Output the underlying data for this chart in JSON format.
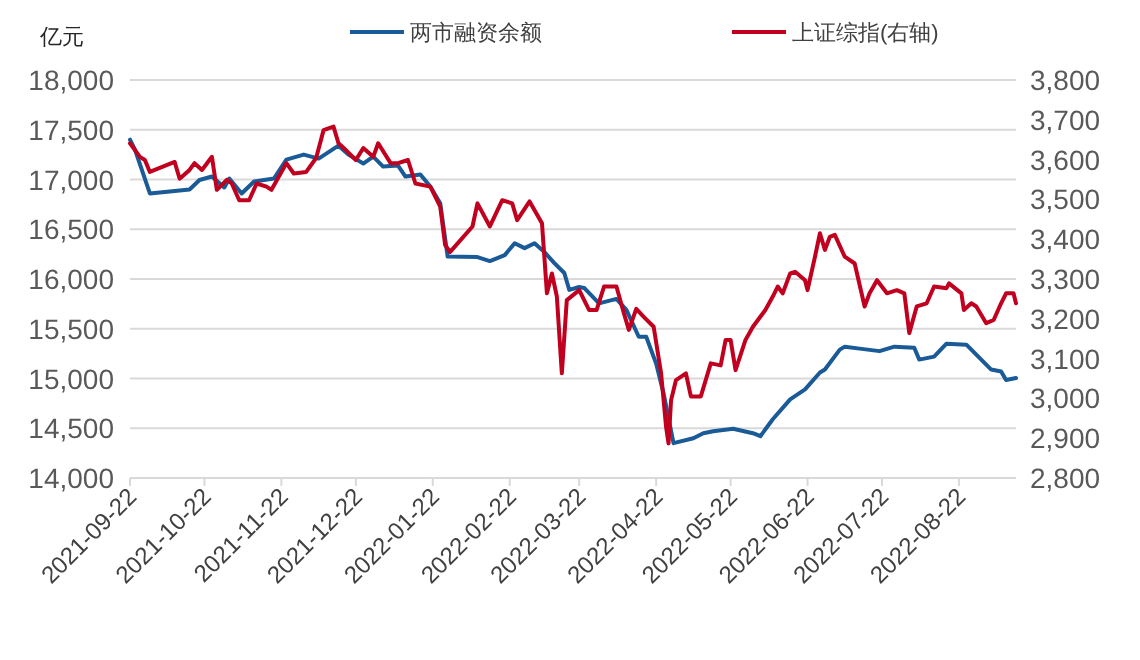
{
  "chart_data": {
    "type": "line",
    "ylabel": "亿元",
    "xlim": [
      "2021-09-22",
      "2022-09-14"
    ],
    "xticks": [
      "2021-09-22",
      "2021-10-22",
      "2021-11-22",
      "2021-12-22",
      "2022-01-22",
      "2022-02-22",
      "2022-03-22",
      "2022-04-22",
      "2022-05-22",
      "2022-06-22",
      "2022-07-22",
      "2022-08-22"
    ],
    "ylim": [
      14000,
      18000
    ],
    "yticks": [
      {
        "value": 14000,
        "label": "14,000"
      },
      {
        "value": 14500,
        "label": "14,500"
      },
      {
        "value": 15000,
        "label": "15,000"
      },
      {
        "value": 15500,
        "label": "15,500"
      },
      {
        "value": 16000,
        "label": "16,000"
      },
      {
        "value": 16500,
        "label": "16,500"
      },
      {
        "value": 17000,
        "label": "17,000"
      },
      {
        "value": 17500,
        "label": "17,500"
      },
      {
        "value": 18000,
        "label": "18,000"
      }
    ],
    "y2lim": [
      2800,
      3800
    ],
    "y2ticks": [
      {
        "value": 2800,
        "label": "2,800"
      },
      {
        "value": 2900,
        "label": "2,900"
      },
      {
        "value": 3000,
        "label": "3,000"
      },
      {
        "value": 3100,
        "label": "3,100"
      },
      {
        "value": 3200,
        "label": "3,200"
      },
      {
        "value": 3300,
        "label": "3,300"
      },
      {
        "value": 3400,
        "label": "3,400"
      },
      {
        "value": 3500,
        "label": "3,500"
      },
      {
        "value": 3600,
        "label": "3,600"
      },
      {
        "value": 3700,
        "label": "3,700"
      },
      {
        "value": 3800,
        "label": "3,800"
      }
    ],
    "grid": "y",
    "legend": "top",
    "series": [
      {
        "name": "两市融资余额",
        "color": "#1a5a96",
        "x": [
          "2021-09-22",
          "2021-09-24",
          "2021-09-30",
          "2021-10-16",
          "2021-10-20",
          "2021-10-25",
          "2021-10-30",
          "2021-11-01",
          "2021-11-06",
          "2021-11-11",
          "2021-11-19",
          "2021-11-24",
          "2021-12-01",
          "2021-12-07",
          "2021-12-15",
          "2021-12-19",
          "2021-12-25",
          "2021-12-29",
          "2022-01-02",
          "2022-01-08",
          "2022-01-11",
          "2022-01-17",
          "2022-01-21",
          "2022-01-25",
          "2022-01-28",
          "2022-02-09",
          "2022-02-14",
          "2022-02-20",
          "2022-02-24",
          "2022-02-28",
          "2022-03-04",
          "2022-03-08",
          "2022-03-12",
          "2022-03-16",
          "2022-03-18",
          "2022-03-22",
          "2022-03-24",
          "2022-03-30",
          "2022-04-06",
          "2022-04-10",
          "2022-04-15",
          "2022-04-18",
          "2022-04-22",
          "2022-04-25",
          "2022-04-29",
          "2022-05-07",
          "2022-05-11",
          "2022-05-15",
          "2022-05-23",
          "2022-05-31",
          "2022-06-03",
          "2022-06-08",
          "2022-06-15",
          "2022-06-21",
          "2022-06-27",
          "2022-06-29",
          "2022-07-05",
          "2022-07-07",
          "2022-07-13",
          "2022-07-21",
          "2022-07-27",
          "2022-08-04",
          "2022-08-06",
          "2022-08-12",
          "2022-08-17",
          "2022-08-25",
          "2022-08-31",
          "2022-09-04",
          "2022-09-08",
          "2022-09-10",
          "2022-09-14"
        ],
        "values": [
          17400,
          17300,
          16860,
          16900,
          16995,
          17030,
          16920,
          17010,
          16860,
          16980,
          17010,
          17200,
          17250,
          17210,
          17340,
          17250,
          17160,
          17230,
          17130,
          17140,
          17030,
          17050,
          16930,
          16760,
          16225,
          16220,
          16180,
          16240,
          16360,
          16310,
          16360,
          16270,
          16160,
          16060,
          15890,
          15920,
          15910,
          15755,
          15800,
          15690,
          15420,
          15420,
          15150,
          14850,
          14350,
          14400,
          14450,
          14470,
          14495,
          14450,
          14420,
          14590,
          14790,
          14890,
          15060,
          15090,
          15290,
          15320,
          15300,
          15275,
          15320,
          15310,
          15190,
          15220,
          15350,
          15340,
          15190,
          15090,
          15070,
          14985,
          15005
        ]
      },
      {
        "name": "上证综指(右轴)",
        "color": "#c0001e",
        "axis": "y2",
        "x": [
          "2021-09-22",
          "2021-09-26",
          "2021-09-28",
          "2021-09-30",
          "2021-10-10",
          "2021-10-12",
          "2021-10-16",
          "2021-10-18",
          "2021-10-21",
          "2021-10-25",
          "2021-10-27",
          "2021-10-31",
          "2021-11-02",
          "2021-11-05",
          "2021-11-09",
          "2021-11-12",
          "2021-11-16",
          "2021-11-18",
          "2021-11-24",
          "2021-11-27",
          "2021-12-02",
          "2021-12-06",
          "2021-12-09",
          "2021-12-13",
          "2021-12-15",
          "2021-12-18",
          "2021-12-22",
          "2021-12-25",
          "2021-12-29",
          "2021-12-31",
          "2022-01-05",
          "2022-01-08",
          "2022-01-12",
          "2022-01-15",
          "2022-01-21",
          "2022-01-25",
          "2022-01-27",
          "2022-01-29",
          "2022-02-07",
          "2022-02-09",
          "2022-02-14",
          "2022-02-19",
          "2022-02-23",
          "2022-02-25",
          "2022-03-02",
          "2022-03-07",
          "2022-03-09",
          "2022-03-11",
          "2022-03-13",
          "2022-03-15",
          "2022-03-17",
          "2022-03-22",
          "2022-03-26",
          "2022-03-29",
          "2022-04-01",
          "2022-04-06",
          "2022-04-09",
          "2022-04-11",
          "2022-04-14",
          "2022-04-17",
          "2022-04-21",
          "2022-04-24",
          "2022-04-26",
          "2022-04-27",
          "2022-04-28",
          "2022-04-30",
          "2022-05-04",
          "2022-05-06",
          "2022-05-10",
          "2022-05-14",
          "2022-05-18",
          "2022-05-20",
          "2022-05-22",
          "2022-05-24",
          "2022-05-28",
          "2022-05-31",
          "2022-06-05",
          "2022-06-08",
          "2022-06-10",
          "2022-06-12",
          "2022-06-15",
          "2022-06-17",
          "2022-06-21",
          "2022-06-22",
          "2022-06-25",
          "2022-06-27",
          "2022-06-29",
          "2022-07-01",
          "2022-07-03",
          "2022-07-07",
          "2022-07-11",
          "2022-07-15",
          "2022-07-17",
          "2022-07-20",
          "2022-07-24",
          "2022-07-28",
          "2022-07-31",
          "2022-08-02",
          "2022-08-05",
          "2022-08-09",
          "2022-08-12",
          "2022-08-17",
          "2022-08-18",
          "2022-08-23",
          "2022-08-24",
          "2022-08-27",
          "2022-08-29",
          "2022-09-02",
          "2022-09-05",
          "2022-09-08",
          "2022-09-10",
          "2022-09-13",
          "2022-09-14"
        ],
        "values": [
          3641,
          3607,
          3599,
          3569,
          3594,
          3552,
          3574,
          3591,
          3574,
          3607,
          3524,
          3549,
          3540,
          3498,
          3498,
          3540,
          3532,
          3524,
          3591,
          3565,
          3569,
          3604,
          3674,
          3683,
          3641,
          3624,
          3599,
          3629,
          3607,
          3641,
          3591,
          3591,
          3599,
          3540,
          3532,
          3482,
          3385,
          3368,
          3432,
          3490,
          3432,
          3498,
          3490,
          3448,
          3495,
          3440,
          3264,
          3314,
          3256,
          3063,
          3247,
          3272,
          3222,
          3222,
          3281,
          3281,
          3214,
          3172,
          3225,
          3205,
          3180,
          3063,
          2929,
          2887,
          2995,
          3046,
          3063,
          3005,
          3005,
          3088,
          3083,
          3147,
          3147,
          3071,
          3147,
          3180,
          3222,
          3256,
          3281,
          3264,
          3314,
          3318,
          3297,
          3272,
          3356,
          3415,
          3373,
          3406,
          3411,
          3356,
          3339,
          3231,
          3264,
          3297,
          3264,
          3272,
          3264,
          3164,
          3231,
          3239,
          3281,
          3277,
          3289,
          3264,
          3222,
          3239,
          3231,
          3189,
          3197,
          3239,
          3264,
          3264,
          3239
        ]
      }
    ]
  }
}
